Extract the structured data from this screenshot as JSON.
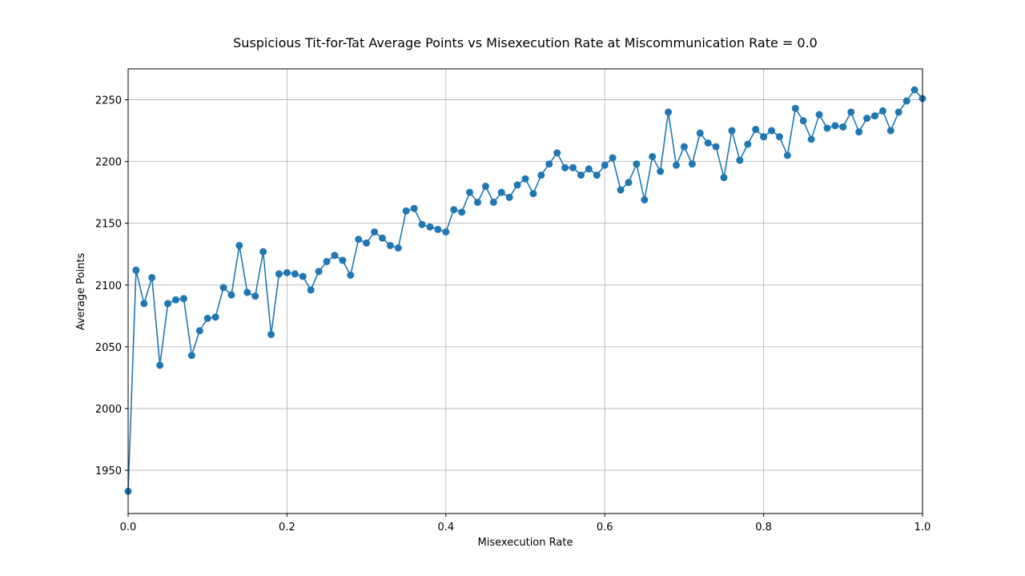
{
  "chart_data": {
    "type": "line",
    "title": "Suspicious Tit-for-Tat Average Points vs Misexecution Rate at Miscommunication Rate = 0.0",
    "xlabel": "Misexecution Rate",
    "ylabel": "Average Points",
    "xlim": [
      0.0,
      1.0
    ],
    "ylim": [
      1915,
      2275
    ],
    "grid": true,
    "x_ticks": [
      "0.0",
      "0.2",
      "0.4",
      "0.6",
      "0.8",
      "1.0"
    ],
    "y_ticks": [
      "1950",
      "2000",
      "2050",
      "2100",
      "2150",
      "2200",
      "2250"
    ],
    "series": [
      {
        "color": "#1f77b4",
        "marker": "circle",
        "x": [
          0.0,
          0.01,
          0.02,
          0.03,
          0.04,
          0.05,
          0.06,
          0.07,
          0.08,
          0.09,
          0.1,
          0.11,
          0.12,
          0.13,
          0.14,
          0.15,
          0.16,
          0.17,
          0.18,
          0.19,
          0.2,
          0.21,
          0.22,
          0.23,
          0.24,
          0.25,
          0.26,
          0.27,
          0.28,
          0.29,
          0.3,
          0.31,
          0.32,
          0.33,
          0.34,
          0.35,
          0.36,
          0.37,
          0.38,
          0.39,
          0.4,
          0.41,
          0.42,
          0.43,
          0.44,
          0.45,
          0.46,
          0.47,
          0.48,
          0.49,
          0.5,
          0.51,
          0.52,
          0.53,
          0.54,
          0.55,
          0.56,
          0.57,
          0.58,
          0.59,
          0.6,
          0.61,
          0.62,
          0.63,
          0.64,
          0.65,
          0.66,
          0.67,
          0.68,
          0.69,
          0.7,
          0.71,
          0.72,
          0.73,
          0.74,
          0.75,
          0.76,
          0.77,
          0.78,
          0.79,
          0.8,
          0.81,
          0.82,
          0.83,
          0.84,
          0.85,
          0.86,
          0.87,
          0.88,
          0.89,
          0.9,
          0.91,
          0.92,
          0.93,
          0.94,
          0.95,
          0.96,
          0.97,
          0.98,
          0.99,
          1.0
        ],
        "values": [
          1933,
          2112,
          2085,
          2106,
          2035,
          2085,
          2088,
          2089,
          2043,
          2063,
          2073,
          2074,
          2098,
          2092,
          2132,
          2094,
          2091,
          2127,
          2060,
          2109,
          2110,
          2109,
          2107,
          2096,
          2111,
          2119,
          2124,
          2120,
          2108,
          2137,
          2134,
          2143,
          2138,
          2132,
          2130,
          2160,
          2162,
          2149,
          2147,
          2145,
          2143,
          2161,
          2159,
          2175,
          2167,
          2180,
          2167,
          2175,
          2171,
          2181,
          2186,
          2174,
          2189,
          2198,
          2207,
          2195,
          2195,
          2189,
          2194,
          2189,
          2197,
          2203,
          2177,
          2183,
          2198,
          2169,
          2204,
          2192,
          2240,
          2197,
          2212,
          2198,
          2223,
          2215,
          2212,
          2187,
          2225,
          2201,
          2214,
          2226,
          2220,
          2225,
          2220,
          2205,
          2243,
          2233,
          2218,
          2238,
          2227,
          2229,
          2228,
          2240,
          2224,
          2235,
          2237,
          2241,
          2225,
          2240,
          2249,
          2258,
          2251
        ]
      }
    ]
  }
}
